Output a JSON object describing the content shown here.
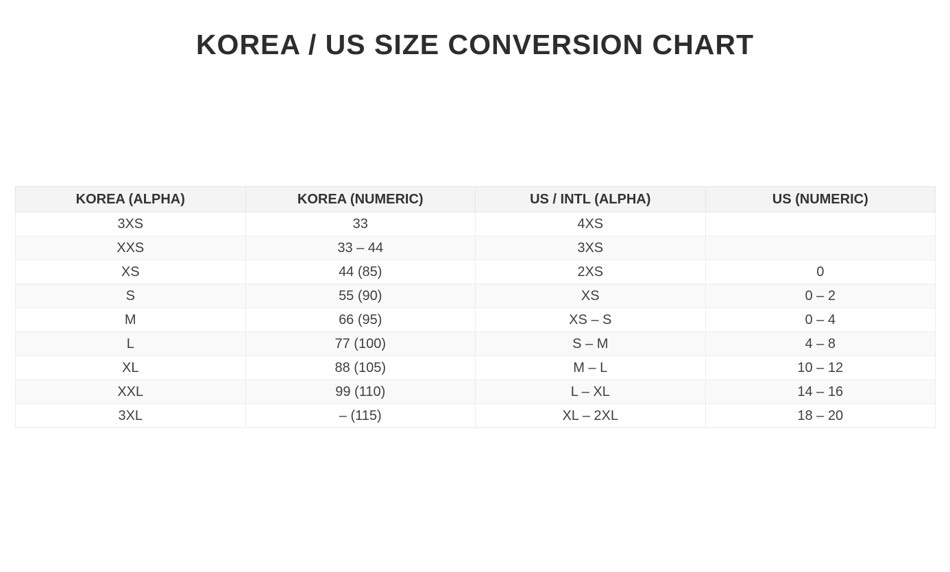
{
  "page": {
    "title": "KOREA / US SIZE CONVERSION CHART",
    "background_color": "#ffffff",
    "title_color": "#2d2d2d"
  },
  "table": {
    "header_bg_color": "#f4f4f4",
    "stripe_bg_color": "#f9f9f9",
    "border_color": "#e4e4e4",
    "text_color": "#404040",
    "headers": [
      "KOREA (ALPHA)",
      "KOREA (NUMERIC)",
      "US / INTL (ALPHA)",
      "US (NUMERIC)"
    ],
    "rows": [
      {
        "cells": [
          "3XS",
          "33",
          "4XS",
          ""
        ]
      },
      {
        "cells": [
          "XXS",
          "33 – 44",
          "3XS",
          ""
        ]
      },
      {
        "cells": [
          "XS",
          "44 (85)",
          "2XS",
          "0"
        ]
      },
      {
        "cells": [
          "S",
          "55 (90)",
          "XS",
          "0 – 2"
        ]
      },
      {
        "cells": [
          "M",
          "66 (95)",
          "XS – S",
          "0 – 4"
        ]
      },
      {
        "cells": [
          "L",
          "77 (100)",
          "S – M",
          "4 – 8"
        ]
      },
      {
        "cells": [
          "XL",
          "88 (105)",
          "M – L",
          "10 – 12"
        ]
      },
      {
        "cells": [
          "XXL",
          "99 (110)",
          "L – XL",
          "14 – 16"
        ]
      },
      {
        "cells": [
          "3XL",
          "– (115)",
          "XL – 2XL",
          "18 – 20"
        ]
      }
    ]
  },
  "chart_data": {
    "type": "table",
    "title": "KOREA / US SIZE CONVERSION CHART",
    "columns": [
      "KOREA (ALPHA)",
      "KOREA (NUMERIC)",
      "US / INTL (ALPHA)",
      "US (NUMERIC)"
    ],
    "rows": [
      [
        "3XS",
        "33",
        "4XS",
        ""
      ],
      [
        "XXS",
        "33 – 44",
        "3XS",
        ""
      ],
      [
        "XS",
        "44 (85)",
        "2XS",
        "0"
      ],
      [
        "S",
        "55 (90)",
        "XS",
        "0 – 2"
      ],
      [
        "M",
        "66 (95)",
        "XS – S",
        "0 – 4"
      ],
      [
        "L",
        "77 (100)",
        "S – M",
        "4 – 8"
      ],
      [
        "XL",
        "88 (105)",
        "M – L",
        "10 – 12"
      ],
      [
        "XXL",
        "99 (110)",
        "L – XL",
        "14 – 16"
      ],
      [
        "3XL",
        "– (115)",
        "XL – 2XL",
        "18 – 20"
      ]
    ]
  }
}
